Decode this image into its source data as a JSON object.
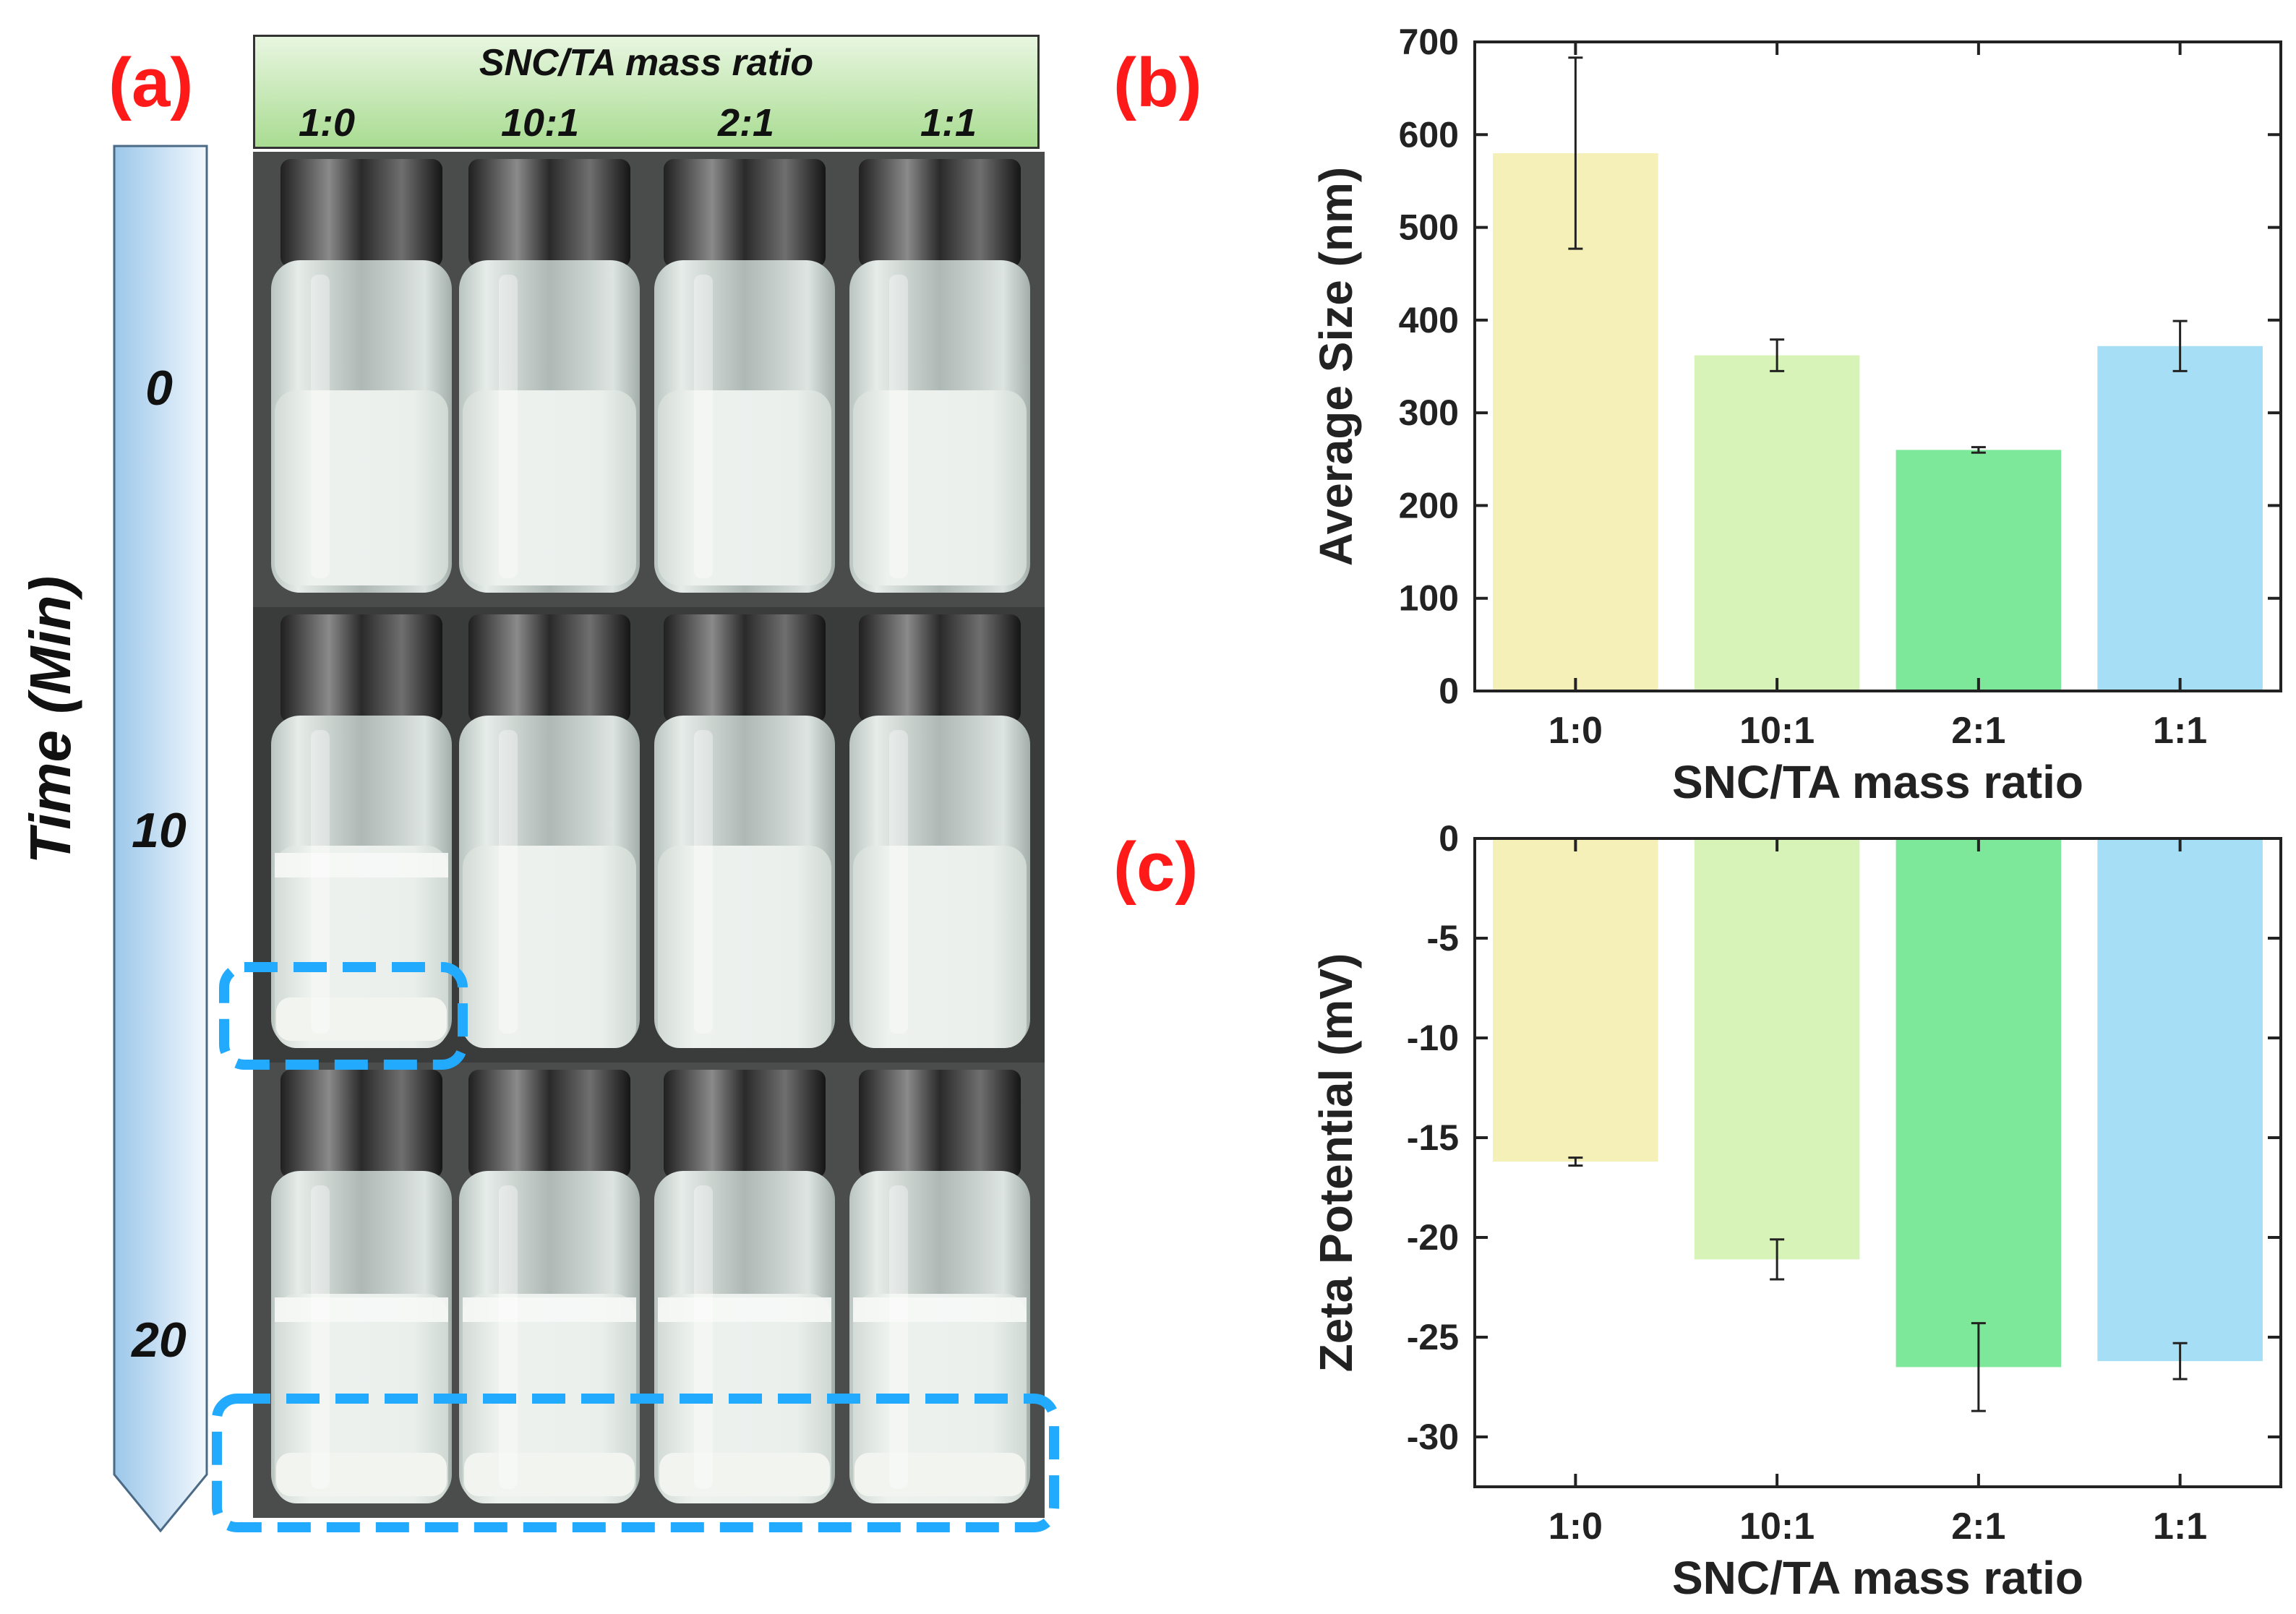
{
  "panel_labels": {
    "a": "(a)",
    "b": "(b)",
    "c": "(c)"
  },
  "panel_a": {
    "header_title": "SNC/TA mass ratio",
    "ratios": [
      "1:0",
      "10:1",
      "2:1",
      "1:1"
    ],
    "time_axis_title": "Time (Min)",
    "time_ticks": [
      "0",
      "10",
      "20"
    ]
  },
  "colors": {
    "bar_1_0": "#f4f0b8",
    "bar_10_1": "#d8f3b8",
    "bar_2_1": "#7ee89a",
    "bar_1_1": "#a6def5",
    "highlight": "#22aaff",
    "label_red": "#ff1a1a"
  },
  "chart_data": [
    {
      "type": "bar",
      "panel": "b",
      "title": "",
      "xlabel": "SNC/TA mass ratio",
      "ylabel": "Average Size (nm)",
      "categories": [
        "1:0",
        "10:1",
        "2:1",
        "1:1"
      ],
      "values": [
        580,
        362,
        260,
        372
      ],
      "error": [
        103,
        17,
        3,
        27
      ],
      "ylim": [
        0,
        700
      ],
      "yticks": [
        0,
        100,
        200,
        300,
        400,
        500,
        600,
        700
      ]
    },
    {
      "type": "bar",
      "panel": "c",
      "title": "",
      "xlabel": "SNC/TA mass ratio",
      "ylabel": "Zeta Potential (mV)",
      "categories": [
        "1:0",
        "10:1",
        "2:1",
        "1:1"
      ],
      "values": [
        -16.2,
        -21.1,
        -26.5,
        -26.2
      ],
      "error": [
        0.2,
        1.0,
        2.2,
        0.9
      ],
      "ylim": [
        -32.5,
        0
      ],
      "yticks": [
        0,
        -5,
        -10,
        -15,
        -20,
        -25,
        -30
      ]
    }
  ]
}
